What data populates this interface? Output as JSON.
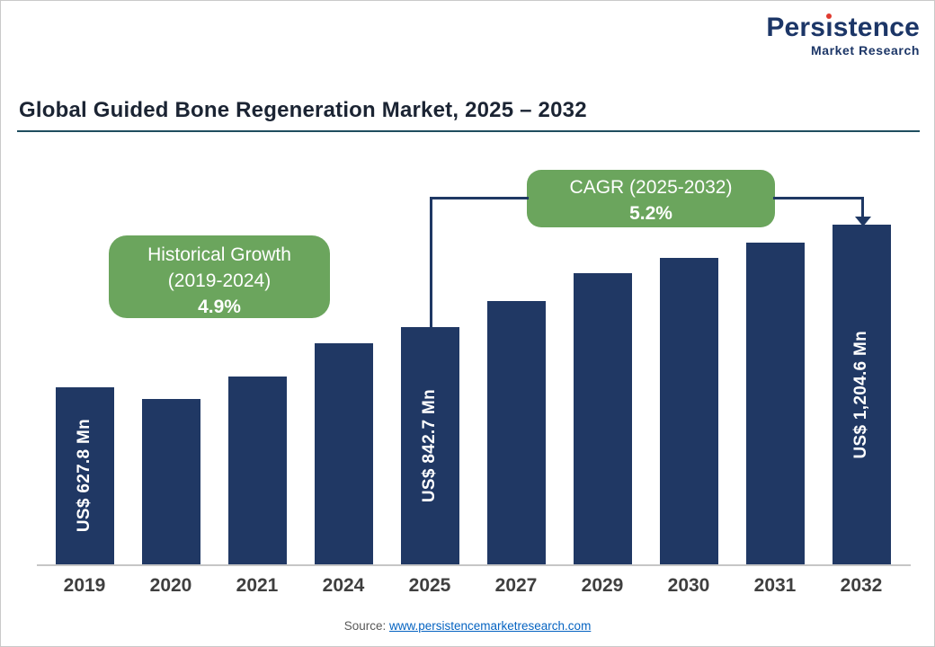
{
  "header": {
    "logo": {
      "brand_pre": "Pers",
      "brand_i_dotless": "ı",
      "brand_post": "stence",
      "subtitle": "Market Research",
      "brand_color": "#1c3667",
      "dot_color": "#e03a2f"
    },
    "title": "Global Guided Bone Regeneration Market, 2025 – 2032"
  },
  "annotations": {
    "historical": {
      "line1": "Historical Growth",
      "line2": "(2019-2024)",
      "value": "4.9%",
      "bg_color": "#6ba55d"
    },
    "cagr": {
      "line1": "CAGR (2025-2032)",
      "value": "5.2%",
      "bg_color": "#6ba55d"
    }
  },
  "chart_data": {
    "type": "bar",
    "title": "Global Guided Bone Regeneration Market, 2025 – 2032",
    "categories": [
      "2019",
      "2020",
      "2021",
      "2024",
      "2025",
      "2027",
      "2029",
      "2030",
      "2031",
      "2032"
    ],
    "values": [
      627.8,
      585,
      665,
      785,
      842.7,
      932.6,
      1032.1,
      1085.8,
      1142.2,
      1204.6
    ],
    "value_unit": "US$ Mn",
    "value_labels": [
      {
        "index": 0,
        "text": "US$ 627.8 Mn"
      },
      {
        "index": 4,
        "text": "US$ 842.7 Mn"
      },
      {
        "index": 9,
        "text": "US$ 1,204.6 Mn"
      }
    ],
    "bar_color": "#203864",
    "xlabel": "",
    "ylabel": "",
    "ylim": [
      0,
      1250
    ],
    "grid": false,
    "y_axis_visible": false,
    "legend": false,
    "annotations": [
      "Historical Growth (2019-2024): 4.9%",
      "CAGR (2025-2032): 5.2%"
    ]
  },
  "footer": {
    "source_label": "Source:",
    "source_link": "www.persistencemarketresearch.com",
    "link_color": "#0563c1"
  }
}
